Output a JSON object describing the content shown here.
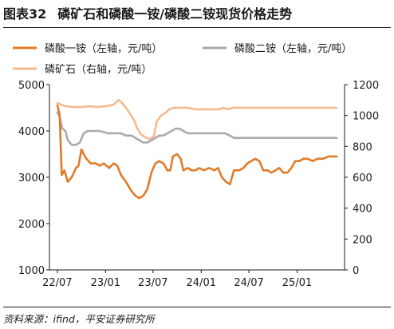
{
  "figure": {
    "number": "图表32",
    "title": "磷矿石和磷酸一铵/磷酸二铵现货价格走势",
    "source": "资料来源：ifind，平安证券研究所"
  },
  "chart_data": {
    "type": "line",
    "x_ticks": [
      "22/07",
      "23/01",
      "23/07",
      "24/01",
      "24/07",
      "25/01"
    ],
    "x_range": [
      "2022-07",
      "2025-06"
    ],
    "y_left": {
      "lim": [
        1000,
        5000
      ],
      "ticks": [
        1000,
        2000,
        3000,
        4000,
        5000
      ]
    },
    "y_right": {
      "lim": [
        0,
        1200
      ],
      "ticks": [
        0,
        200,
        400,
        600,
        800,
        1000,
        1200
      ]
    },
    "legend_position": "top",
    "grid": false,
    "series": [
      {
        "name": "磷酸一铵（左轴，元/吨）",
        "axis": "left",
        "color": "#E07B28",
        "points": [
          [
            "2022-07-01",
            4550
          ],
          [
            "2022-07-10",
            4350
          ],
          [
            "2022-07-18",
            3050
          ],
          [
            "2022-07-28",
            3150
          ],
          [
            "2022-08-10",
            2900
          ],
          [
            "2022-08-25",
            3000
          ],
          [
            "2022-09-10",
            3200
          ],
          [
            "2022-09-20",
            3250
          ],
          [
            "2022-10-01",
            3600
          ],
          [
            "2022-10-10",
            3500
          ],
          [
            "2022-10-20",
            3400
          ],
          [
            "2022-11-05",
            3300
          ],
          [
            "2022-11-25",
            3300
          ],
          [
            "2022-12-10",
            3250
          ],
          [
            "2022-12-25",
            3300
          ],
          [
            "2023-01-15",
            3200
          ],
          [
            "2023-02-01",
            3300
          ],
          [
            "2023-02-15",
            3250
          ],
          [
            "2023-03-01",
            3050
          ],
          [
            "2023-03-20",
            2900
          ],
          [
            "2023-04-10",
            2700
          ],
          [
            "2023-04-25",
            2600
          ],
          [
            "2023-05-10",
            2550
          ],
          [
            "2023-05-25",
            2600
          ],
          [
            "2023-06-10",
            2750
          ],
          [
            "2023-06-25",
            3100
          ],
          [
            "2023-07-10",
            3300
          ],
          [
            "2023-07-25",
            3350
          ],
          [
            "2023-08-10",
            3300
          ],
          [
            "2023-08-25",
            3150
          ],
          [
            "2023-09-05",
            3150
          ],
          [
            "2023-09-15",
            3450
          ],
          [
            "2023-10-01",
            3500
          ],
          [
            "2023-10-15",
            3400
          ],
          [
            "2023-10-25",
            3150
          ],
          [
            "2023-11-10",
            3200
          ],
          [
            "2023-11-25",
            3150
          ],
          [
            "2023-12-10",
            3150
          ],
          [
            "2023-12-25",
            3200
          ],
          [
            "2024-01-10",
            3150
          ],
          [
            "2024-02-01",
            3200
          ],
          [
            "2024-02-20",
            3150
          ],
          [
            "2024-03-05",
            3200
          ],
          [
            "2024-03-20",
            3000
          ],
          [
            "2024-04-05",
            2900
          ],
          [
            "2024-04-20",
            2850
          ],
          [
            "2024-05-05",
            3150
          ],
          [
            "2024-05-25",
            3150
          ],
          [
            "2024-06-10",
            3200
          ],
          [
            "2024-06-25",
            3300
          ],
          [
            "2024-07-10",
            3350
          ],
          [
            "2024-07-25",
            3400
          ],
          [
            "2024-08-10",
            3350
          ],
          [
            "2024-08-25",
            3150
          ],
          [
            "2024-09-10",
            3150
          ],
          [
            "2024-09-25",
            3100
          ],
          [
            "2024-10-10",
            3150
          ],
          [
            "2024-10-25",
            3200
          ],
          [
            "2024-11-10",
            3100
          ],
          [
            "2024-11-25",
            3100
          ],
          [
            "2024-12-10",
            3200
          ],
          [
            "2024-12-25",
            3350
          ],
          [
            "2025-01-10",
            3350
          ],
          [
            "2025-01-25",
            3400
          ],
          [
            "2025-02-10",
            3400
          ],
          [
            "2025-03-01",
            3350
          ],
          [
            "2025-03-20",
            3400
          ],
          [
            "2025-04-10",
            3400
          ],
          [
            "2025-05-01",
            3450
          ],
          [
            "2025-05-20",
            3450
          ],
          [
            "2025-06-01",
            3450
          ]
        ]
      },
      {
        "name": "磷酸二铵（左轴，元/吨）",
        "axis": "left",
        "color": "#AAAAAA",
        "points": [
          [
            "2022-07-01",
            4400
          ],
          [
            "2022-07-10",
            4300
          ],
          [
            "2022-07-20",
            4050
          ],
          [
            "2022-08-01",
            4000
          ],
          [
            "2022-08-10",
            3800
          ],
          [
            "2022-08-25",
            3700
          ],
          [
            "2022-09-10",
            3700
          ],
          [
            "2022-09-25",
            3750
          ],
          [
            "2022-10-10",
            3950
          ],
          [
            "2022-10-25",
            4000
          ],
          [
            "2022-11-15",
            4000
          ],
          [
            "2022-12-10",
            4000
          ],
          [
            "2023-01-10",
            3950
          ],
          [
            "2023-02-01",
            3950
          ],
          [
            "2023-03-01",
            3950
          ],
          [
            "2023-03-20",
            3900
          ],
          [
            "2023-04-10",
            3900
          ],
          [
            "2023-04-25",
            3850
          ],
          [
            "2023-05-10",
            3800
          ],
          [
            "2023-05-25",
            3750
          ],
          [
            "2023-06-10",
            3750
          ],
          [
            "2023-06-25",
            3800
          ],
          [
            "2023-07-10",
            3850
          ],
          [
            "2023-07-25",
            3900
          ],
          [
            "2023-08-10",
            3900
          ],
          [
            "2023-08-25",
            3950
          ],
          [
            "2023-09-10",
            4000
          ],
          [
            "2023-09-25",
            4050
          ],
          [
            "2023-10-10",
            4050
          ],
          [
            "2023-10-25",
            4000
          ],
          [
            "2023-11-10",
            3950
          ],
          [
            "2023-12-10",
            3950
          ],
          [
            "2024-01-10",
            3950
          ],
          [
            "2024-02-01",
            3950
          ],
          [
            "2024-03-01",
            3950
          ],
          [
            "2024-04-01",
            3950
          ],
          [
            "2024-04-20",
            3900
          ],
          [
            "2024-05-05",
            3850
          ],
          [
            "2024-06-01",
            3850
          ],
          [
            "2024-07-01",
            3850
          ],
          [
            "2024-08-01",
            3850
          ],
          [
            "2024-09-01",
            3850
          ],
          [
            "2024-10-01",
            3850
          ],
          [
            "2024-11-01",
            3850
          ],
          [
            "2024-12-01",
            3850
          ],
          [
            "2025-01-01",
            3850
          ],
          [
            "2025-02-01",
            3850
          ],
          [
            "2025-03-01",
            3850
          ],
          [
            "2025-04-01",
            3850
          ],
          [
            "2025-05-01",
            3850
          ],
          [
            "2025-06-01",
            3850
          ]
        ]
      },
      {
        "name": "磷矿石（右轴，元/吨）",
        "axis": "right",
        "color": "#F5B98C",
        "points": [
          [
            "2022-07-01",
            1080
          ],
          [
            "2022-07-15",
            1070
          ],
          [
            "2022-08-01",
            1060
          ],
          [
            "2022-09-01",
            1055
          ],
          [
            "2022-10-01",
            1055
          ],
          [
            "2022-11-01",
            1060
          ],
          [
            "2022-12-01",
            1055
          ],
          [
            "2023-01-01",
            1060
          ],
          [
            "2023-02-01",
            1070
          ],
          [
            "2023-02-20",
            1100
          ],
          [
            "2023-03-01",
            1090
          ],
          [
            "2023-03-20",
            1050
          ],
          [
            "2023-04-05",
            1010
          ],
          [
            "2023-04-20",
            970
          ],
          [
            "2023-05-01",
            920
          ],
          [
            "2023-05-15",
            880
          ],
          [
            "2023-06-01",
            860
          ],
          [
            "2023-06-15",
            850
          ],
          [
            "2023-06-25",
            850
          ],
          [
            "2023-07-05",
            870
          ],
          [
            "2023-07-15",
            960
          ],
          [
            "2023-08-01",
            1000
          ],
          [
            "2023-08-20",
            1020
          ],
          [
            "2023-09-01",
            1040
          ],
          [
            "2023-09-20",
            1050
          ],
          [
            "2023-10-10",
            1050
          ],
          [
            "2023-11-10",
            1050
          ],
          [
            "2023-12-10",
            1040
          ],
          [
            "2024-01-10",
            1040
          ],
          [
            "2024-02-10",
            1040
          ],
          [
            "2024-03-10",
            1040
          ],
          [
            "2024-03-25",
            1050
          ],
          [
            "2024-04-10",
            1040
          ],
          [
            "2024-05-01",
            1050
          ],
          [
            "2024-06-01",
            1050
          ],
          [
            "2024-07-01",
            1050
          ],
          [
            "2024-08-01",
            1050
          ],
          [
            "2024-09-01",
            1050
          ],
          [
            "2024-10-01",
            1050
          ],
          [
            "2024-11-01",
            1050
          ],
          [
            "2024-12-01",
            1050
          ],
          [
            "2025-01-01",
            1050
          ],
          [
            "2025-02-01",
            1050
          ],
          [
            "2025-03-01",
            1050
          ],
          [
            "2025-04-01",
            1050
          ],
          [
            "2025-05-01",
            1050
          ],
          [
            "2025-06-01",
            1050
          ]
        ]
      }
    ]
  }
}
